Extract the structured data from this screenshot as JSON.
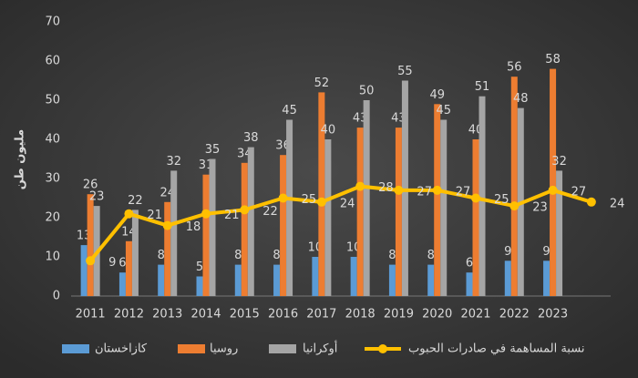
{
  "chart_data": {
    "type": "bar-line",
    "y_label": "مليون طن",
    "categories": [
      "2011",
      "2012",
      "2013",
      "2014",
      "2015",
      "2016",
      "2017",
      "2018",
      "2019",
      "2020",
      "2021",
      "2022",
      "2023",
      null
    ],
    "series": [
      {
        "name": "كازاخستان",
        "type": "bar",
        "color": "#5b9bd5",
        "values": [
          13,
          6,
          8,
          5,
          8,
          8,
          10,
          10,
          8,
          8,
          6,
          9,
          9,
          null
        ]
      },
      {
        "name": "روسيا",
        "type": "bar",
        "color": "#ed7d31",
        "values": [
          26,
          14,
          24,
          31,
          34,
          36,
          52,
          43,
          43,
          49,
          40,
          56,
          58,
          null
        ]
      },
      {
        "name": "أوكرانيا",
        "type": "bar",
        "color": "#a5a5a5",
        "values": [
          23,
          22,
          32,
          35,
          38,
          45,
          40,
          50,
          55,
          45,
          51,
          48,
          32,
          null
        ]
      },
      {
        "name": "نسبة المساهمة في صادرات الحبوب",
        "type": "line",
        "color": "#ffc000",
        "values": [
          9,
          21,
          18,
          21,
          22,
          25,
          24,
          28,
          27,
          27,
          25,
          23,
          27,
          24
        ]
      }
    ],
    "ylim": [
      0,
      70
    ],
    "yticks": [
      0,
      10,
      20,
      30,
      40,
      50,
      60,
      70
    ],
    "grid": false,
    "legend": "bottom"
  }
}
